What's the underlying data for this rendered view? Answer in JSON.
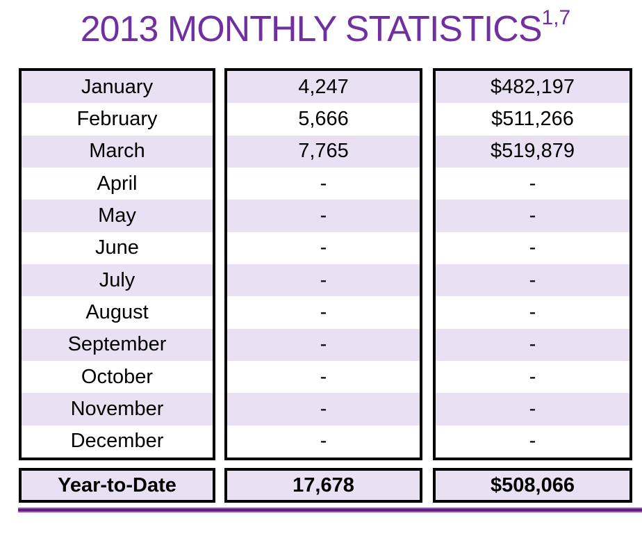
{
  "title": {
    "text": "2013 MONTHLY STATISTICS",
    "superscript": "1,7"
  },
  "colors": {
    "accent_purple": "#7030A0",
    "row_lavender": "#E9E0F3",
    "border_black": "#000000",
    "divider_purple_dark": "#5E1B7E",
    "divider_purple_light": "#9455A8"
  },
  "table": {
    "rows": [
      {
        "month": "January",
        "count": "4,247",
        "amount": "$482,197"
      },
      {
        "month": "February",
        "count": "5,666",
        "amount": "$511,266"
      },
      {
        "month": "March",
        "count": "7,765",
        "amount": "$519,879"
      },
      {
        "month": "April",
        "count": "-",
        "amount": "-"
      },
      {
        "month": "May",
        "count": "-",
        "amount": "-"
      },
      {
        "month": "June",
        "count": "-",
        "amount": "-"
      },
      {
        "month": "July",
        "count": "-",
        "amount": "-"
      },
      {
        "month": "August",
        "count": "-",
        "amount": "-"
      },
      {
        "month": "September",
        "count": "-",
        "amount": "-"
      },
      {
        "month": "October",
        "count": "-",
        "amount": "-"
      },
      {
        "month": "November",
        "count": "-",
        "amount": "-"
      },
      {
        "month": "December",
        "count": "-",
        "amount": "-"
      }
    ],
    "ytd": {
      "label": "Year-to-Date",
      "count": "17,678",
      "amount": "$508,066"
    }
  }
}
